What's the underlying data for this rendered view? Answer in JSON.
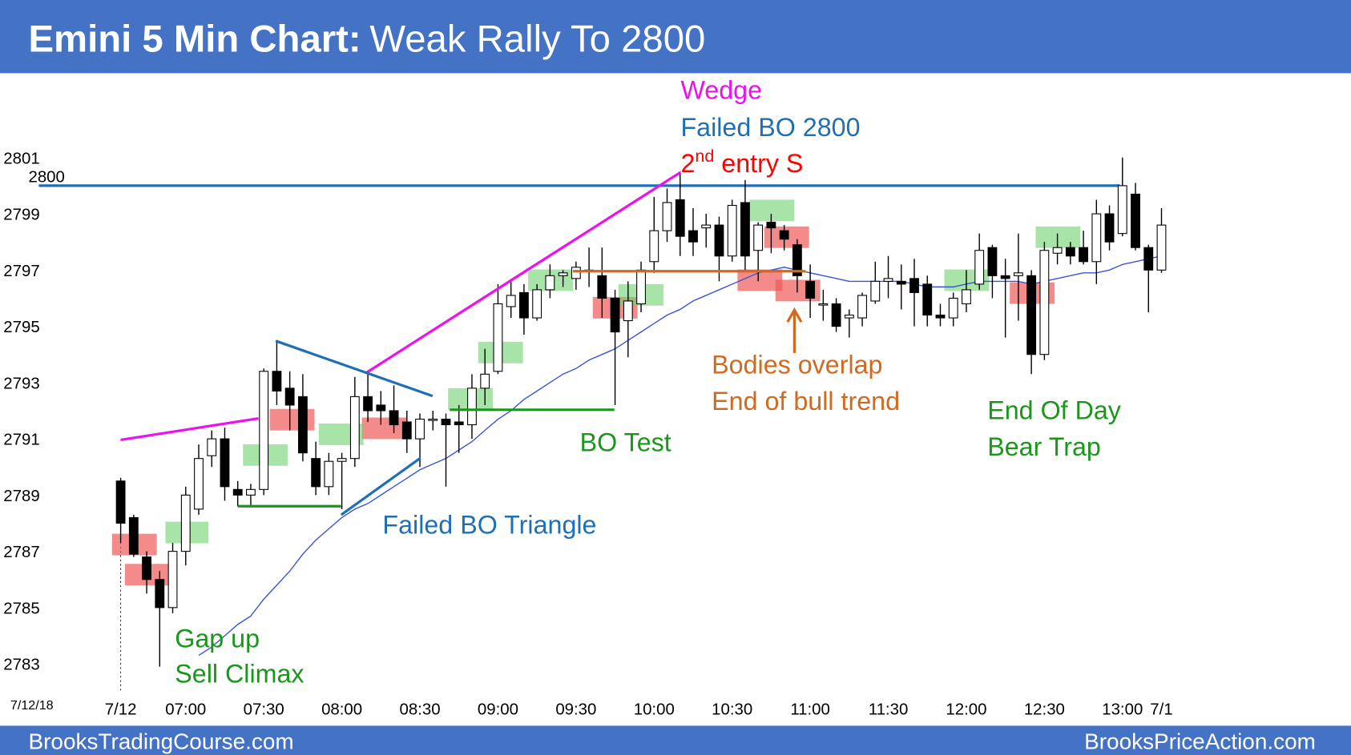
{
  "header": {
    "title": [
      "Emini 5 Min Chart:",
      "Weak Rally To 2800"
    ]
  },
  "footer": {
    "left": "BrooksTradingCourse.com",
    "right": "BrooksPriceAction.com"
  },
  "chart_data": {
    "type": "candlestick",
    "date_label": "7/12/18",
    "categories": [
      "7/12",
      null,
      null,
      null,
      null,
      "07:00",
      null,
      null,
      null,
      null,
      null,
      "07:30",
      null,
      null,
      null,
      null,
      null,
      "08:00",
      null,
      null,
      null,
      null,
      null,
      "08:30",
      null,
      null,
      null,
      null,
      null,
      "09:00",
      null,
      null,
      null,
      null,
      null,
      "09:30",
      null,
      null,
      null,
      null,
      null,
      "10:00",
      null,
      null,
      null,
      null,
      null,
      "10:30",
      null,
      null,
      null,
      null,
      null,
      "11:00",
      null,
      null,
      null,
      null,
      null,
      "11:30",
      null,
      null,
      null,
      null,
      null,
      "12:00",
      null,
      null,
      null,
      null,
      null,
      "12:30",
      null,
      null,
      null,
      null,
      null,
      "13:00",
      null,
      null,
      "7/1"
    ],
    "open": [
      2789.5,
      2788.2,
      2786.8,
      2786,
      2785,
      2787,
      2788.5,
      2790.4,
      2791,
      2789.2,
      2789,
      2789.2,
      2793.4,
      2792.8,
      2792.5,
      2790.3,
      2789.3,
      2790.2,
      2790.3,
      2792.5,
      2792.2,
      2792,
      2791.6,
      2791,
      2791.7,
      2791.7,
      2791.6,
      2791.5,
      2792.8,
      2793.4,
      2795.7,
      2796.2,
      2795.3,
      2796.3,
      2796.8,
      2796.7,
      2797,
      2796.8,
      2796,
      2795.2,
      2795.8,
      2797.3,
      2798.4,
      2799.5,
      2798.4,
      2798.5,
      2798.6,
      2797.5,
      2799.4,
      2797.7,
      2798.7,
      2798.4,
      2797.9,
      2796.6,
      2795.8,
      2795.8,
      2795.3,
      2795.3,
      2795.9,
      2796.6,
      2796.6,
      2796.7,
      2796.5,
      2795.4,
      2795.3,
      2795.8,
      2796.5,
      2797.8,
      2796.8,
      2796.8,
      2796.8,
      2794,
      2797.6,
      2797.8,
      2797.8,
      2797.3,
      2799,
      2798.3,
      2799.7,
      2797.8,
      2797
    ],
    "high": [
      2789.6,
      2788.3,
      2787,
      2786.3,
      2787.3,
      2789.3,
      2790.8,
      2791.3,
      2791.4,
      2789.5,
      2789.4,
      2793.5,
      2794.5,
      2793.4,
      2793.3,
      2790.9,
      2790.5,
      2790.5,
      2793.2,
      2793.4,
      2792.7,
      2792.9,
      2792,
      2791.9,
      2792,
      2791.9,
      2792.2,
      2793.3,
      2794.2,
      2796.5,
      2796.6,
      2796.5,
      2796.5,
      2797.2,
      2797,
      2797.3,
      2797.8,
      2797.8,
      2796.3,
      2796.6,
      2797.3,
      2799.6,
      2799.9,
      2800.5,
      2799.2,
      2799,
      2798.9,
      2799.5,
      2800.2,
      2798.7,
      2799,
      2798.6,
      2798.1,
      2797.2,
      2796.3,
      2796,
      2795.6,
      2796.2,
      2797.3,
      2797.5,
      2797.2,
      2797.4,
      2796.8,
      2795.8,
      2796.2,
      2797,
      2798.3,
      2797.9,
      2797.4,
      2798.3,
      2797,
      2798,
      2798.3,
      2798,
      2798.4,
      2799.5,
      2799.3,
      2801,
      2800.1,
      2797.9,
      2799.2
    ],
    "low": [
      2787.3,
      2786.8,
      2785.5,
      2782.9,
      2784.8,
      2786.5,
      2788.3,
      2790,
      2788.8,
      2788.6,
      2788.6,
      2789,
      2792.2,
      2791.3,
      2790.2,
      2789,
      2789,
      2788.5,
      2790,
      2791.6,
      2791.5,
      2791.2,
      2790.5,
      2790,
      2791.3,
      2789.3,
      2790.5,
      2791,
      2792.2,
      2793.3,
      2795.3,
      2794.7,
      2795.2,
      2796,
      2796.4,
      2796.3,
      2796.4,
      2795.3,
      2792.2,
      2793.9,
      2795.5,
      2796.9,
      2798,
      2797.5,
      2797.5,
      2797.8,
      2796.6,
      2797.3,
      2797,
      2796.6,
      2797.6,
      2797.7,
      2796.2,
      2795.3,
      2795.2,
      2794.8,
      2794.6,
      2795,
      2795.8,
      2796,
      2795.6,
      2795,
      2795,
      2795,
      2795,
      2795.5,
      2796.3,
      2796,
      2794.6,
      2795.2,
      2793.3,
      2793.8,
      2797.2,
      2797.2,
      2797.2,
      2796.5,
      2797.7,
      2798.2,
      2797.7,
      2795.5,
      2796.9
    ],
    "close": [
      2788,
      2786.9,
      2786,
      2785,
      2787,
      2789,
      2790.3,
      2791,
      2789.3,
      2789,
      2789.2,
      2793.4,
      2792.7,
      2792.2,
      2790.5,
      2789.3,
      2790.2,
      2790.3,
      2792.5,
      2792,
      2792,
      2791.5,
      2791,
      2791.7,
      2791.7,
      2791.5,
      2791.5,
      2792.8,
      2793.3,
      2795.8,
      2796.1,
      2795.3,
      2796.3,
      2796.8,
      2796.9,
      2797.1,
      2797,
      2796,
      2794.8,
      2795.9,
      2797,
      2798.4,
      2799.4,
      2798.2,
      2798,
      2798.6,
      2797.5,
      2799.3,
      2797.5,
      2798.6,
      2798.5,
      2798.1,
      2796.8,
      2796,
      2795.8,
      2795,
      2795.4,
      2796.1,
      2796.6,
      2796.7,
      2796.5,
      2796.2,
      2795.4,
      2795.3,
      2796,
      2796.3,
      2797.7,
      2796.8,
      2796.7,
      2796.9,
      2794,
      2797.7,
      2797.8,
      2797.5,
      2797.3,
      2799,
      2798,
      2800,
      2797.8,
      2797,
      2798.6
    ],
    "moving_average": {
      "color": "#3a55d6",
      "values": [
        null,
        null,
        null,
        null,
        null,
        null,
        2783.3,
        2783.6,
        2784.0,
        2784.4,
        2784.7,
        2785.3,
        2785.8,
        2786.3,
        2786.9,
        2787.4,
        2787.8,
        2788.2,
        2788.5,
        2788.7,
        2789.0,
        2789.3,
        2789.6,
        2789.9,
        2790.1,
        2790.3,
        2790.6,
        2790.9,
        2791.3,
        2791.7,
        2792.0,
        2792.4,
        2792.7,
        2793.0,
        2793.3,
        2793.5,
        2793.8,
        2794.0,
        2794.2,
        2794.5,
        2794.8,
        2795.1,
        2795.4,
        2795.6,
        2795.9,
        2796.1,
        2796.3,
        2796.5,
        2796.7,
        2796.9,
        2797.0,
        2797.1,
        2797.0,
        2796.9,
        2796.8,
        2796.7,
        2796.6,
        2796.6,
        2796.6,
        2796.6,
        2796.6,
        2796.5,
        2796.4,
        2796.4,
        2796.4,
        2796.5,
        2796.6,
        2796.6,
        2796.6,
        2796.6,
        2796.5,
        2796.6,
        2796.7,
        2796.8,
        2796.9,
        2796.9,
        2797.0,
        2797.2,
        2797.3,
        2797.4,
        2797.5
      ]
    },
    "bull_color": "#ffffff",
    "bear_color": "#000000",
    "ylim": [
      2780.8,
      2804.0
    ],
    "yticks": [
      2783,
      2785,
      2787,
      2789,
      2791,
      2793,
      2795,
      2797,
      2799,
      2801
    ],
    "hline": {
      "value": 2800,
      "color": "#1f6fb5"
    },
    "annotations": [
      {
        "text": "Wedge",
        "color": "#ee10ee"
      },
      {
        "text": "Failed BO 2800",
        "color": "#1f6fb5"
      },
      {
        "text": [
          "2",
          "nd",
          " entry S"
        ],
        "color": "#ff0000"
      },
      {
        "text": "Bodies overlap",
        "color": "#d2691e"
      },
      {
        "text": "End of bull trend",
        "color": "#d2691e"
      },
      {
        "text": "End Of Day",
        "color": "#1a961a"
      },
      {
        "text": "Bear Trap",
        "color": "#1a961a"
      },
      {
        "text": "BO Test",
        "color": "#1a961a"
      },
      {
        "text": "Failed BO Triangle",
        "color": "#1f6fb5"
      },
      {
        "text": "Gap up",
        "color": "#1a961a"
      },
      {
        "text": "Sell Climax",
        "color": "#1a961a"
      }
    ]
  }
}
